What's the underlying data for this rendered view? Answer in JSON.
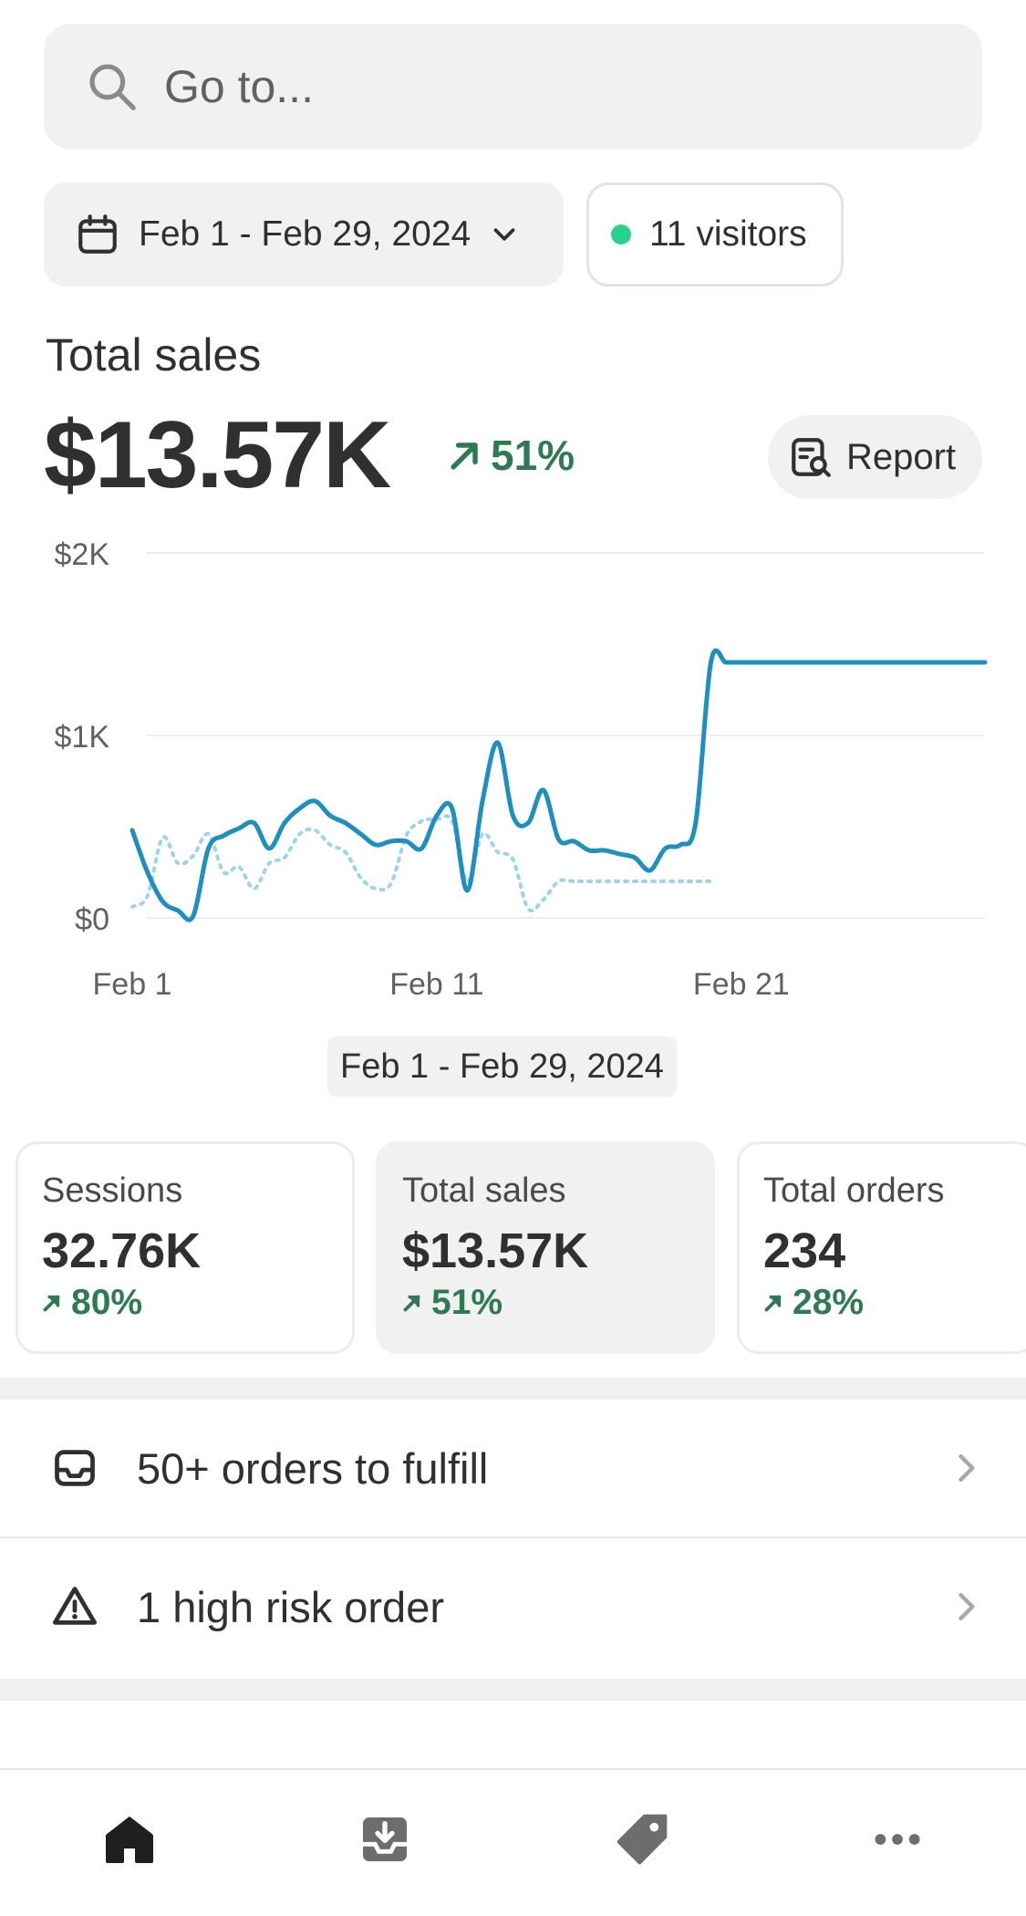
{
  "search": {
    "placeholder": "Go to..."
  },
  "filters": {
    "date_range": "Feb 1 - Feb 29, 2024",
    "visitors": "11 visitors",
    "visitor_dot_color": "#29d08a"
  },
  "summary": {
    "title": "Total sales",
    "value": "$13.57K",
    "change": "51%",
    "report_label": "Report"
  },
  "chart_data": {
    "type": "line",
    "y_ticks": [
      "$2K",
      "$1K",
      "$0"
    ],
    "x_ticks": [
      "Feb 1",
      "Feb 11",
      "Feb 21"
    ],
    "ylim": [
      0,
      2000
    ],
    "xlim": [
      1,
      29
    ],
    "grid": true,
    "series": [
      {
        "style": "solid",
        "color": "#1f8fbe",
        "x": [
          1,
          1.5,
          2,
          2.5,
          3,
          3.5,
          4,
          4.5,
          5,
          5.5,
          6,
          6.5,
          7,
          7.5,
          8,
          8.5,
          9,
          9.5,
          10,
          10.5,
          11,
          11.5,
          12,
          12.5,
          13,
          13.5,
          14,
          14.5,
          15,
          15.5,
          16,
          16.5,
          17,
          17.5,
          18,
          18.5,
          19,
          19.5,
          20,
          20.5,
          21,
          21.5,
          22,
          22.5,
          23,
          23.5,
          24,
          24.5,
          25,
          25.5,
          26,
          26.5,
          27,
          27.5,
          28,
          28.5,
          29
        ],
        "values": [
          480,
          250,
          90,
          40,
          10,
          380,
          450,
          490,
          520,
          380,
          520,
          600,
          640,
          560,
          520,
          460,
          400,
          420,
          420,
          380,
          560,
          600,
          150,
          640,
          960,
          560,
          520,
          700,
          430,
          420,
          370,
          370,
          350,
          330,
          260,
          380,
          400,
          520,
          1400,
          1400,
          1400,
          1400,
          1400,
          1400,
          1400,
          1400,
          1400,
          1400,
          1400,
          1400,
          1400,
          1400,
          1400,
          1400,
          1400,
          1400,
          1400
        ]
      },
      {
        "style": "dotted",
        "color": "#9fd3e6",
        "x": [
          1,
          1.5,
          2,
          2.5,
          3,
          3.5,
          4,
          4.5,
          5,
          5.5,
          6,
          6.5,
          7,
          7.5,
          8,
          8.5,
          9,
          9.5,
          10,
          10.5,
          11,
          11.5,
          12,
          12.5,
          13,
          13.5,
          14,
          14.5,
          15,
          15.5,
          16,
          16.5,
          17,
          17.5,
          18,
          18.5,
          19,
          19.5,
          20
        ],
        "values": [
          60,
          120,
          440,
          300,
          340,
          460,
          250,
          280,
          160,
          300,
          330,
          460,
          480,
          400,
          360,
          220,
          160,
          190,
          450,
          530,
          540,
          530,
          200,
          460,
          360,
          320,
          50,
          100,
          200,
          200,
          200,
          200,
          200,
          200,
          200,
          200,
          200,
          200,
          200
        ]
      }
    ]
  },
  "range_chip": "Feb 1 - Feb 29, 2024",
  "metrics": [
    {
      "label": "Sessions",
      "value": "32.76K",
      "change": "80%"
    },
    {
      "label": "Total sales",
      "value": "$13.57K",
      "change": "51%"
    },
    {
      "label": "Total orders",
      "value": "234",
      "change": "28%"
    }
  ],
  "tasks": [
    {
      "label": "50+ orders to fulfill",
      "icon": "inbox-icon"
    },
    {
      "label": "1 high risk order",
      "icon": "warning-icon"
    }
  ],
  "nav": [
    {
      "icon": "home-icon",
      "active": true
    },
    {
      "icon": "orders-icon",
      "active": false
    },
    {
      "icon": "products-tag-icon",
      "active": false
    },
    {
      "icon": "more-icon",
      "active": false
    }
  ],
  "colors": {
    "accent_line": "#1f8fbe",
    "comparison_line": "#9fd3e6",
    "positive": "#2f7a52"
  }
}
